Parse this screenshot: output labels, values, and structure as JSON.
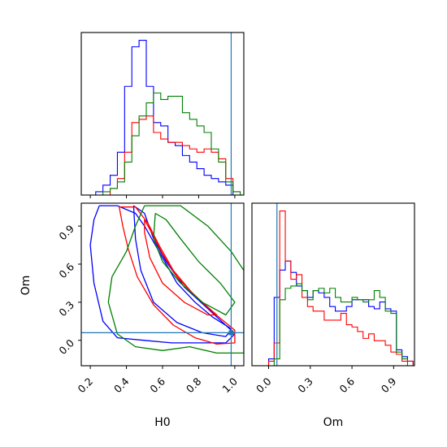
{
  "chart_data": [
    {
      "type": "histogram",
      "panel": "H0 marginal",
      "xlim": [
        0.15,
        1.05
      ],
      "xticks": [
        0.2,
        0.4,
        0.6,
        0.8,
        1.0
      ],
      "truth": 0.98,
      "bin_edges": [
        0.15,
        0.19,
        0.23,
        0.27,
        0.31,
        0.35,
        0.39,
        0.43,
        0.47,
        0.51,
        0.55,
        0.59,
        0.63,
        0.67,
        0.71,
        0.75,
        0.79,
        0.83,
        0.87,
        0.91,
        0.95,
        0.99,
        1.03
      ],
      "series": [
        {
          "color": "#0000ff",
          "counts": [
            0,
            0,
            1,
            3,
            6,
            13,
            33,
            45,
            47,
            33,
            22,
            21,
            16,
            15,
            12,
            10,
            8,
            6,
            5,
            4,
            3,
            0
          ]
        },
        {
          "color": "#ff0000",
          "counts": [
            0,
            0,
            0,
            0,
            2,
            5,
            13,
            22,
            23,
            24,
            19,
            17,
            16,
            16,
            15,
            14,
            13,
            14,
            13,
            11,
            5,
            1
          ]
        },
        {
          "color": "#008000",
          "counts": [
            0,
            0,
            0,
            1,
            2,
            4,
            10,
            18,
            24,
            28,
            31,
            29,
            30,
            30,
            25,
            23,
            21,
            19,
            14,
            10,
            4,
            1
          ]
        }
      ]
    },
    {
      "type": "contour",
      "panel": "H0 vs Om",
      "xlabel": "H0",
      "ylabel": "Om",
      "xlim": [
        0.15,
        1.05
      ],
      "ylim": [
        -0.2,
        1.08
      ],
      "xticks": [
        0.2,
        0.4,
        0.6,
        0.8,
        1.0
      ],
      "yticks": [
        0.0,
        0.3,
        0.6,
        0.9
      ],
      "xtick_labels": [
        "0.2",
        "0.4",
        "0.6",
        "0.8",
        "1.0"
      ],
      "ytick_labels": [
        "0.0",
        "0.3",
        "0.6",
        "0.9"
      ],
      "truth": {
        "x": 0.98,
        "y": 0.06
      },
      "series": [
        {
          "color": "#0000ff",
          "contours": [
            [
              [
                0.25,
                1.06
              ],
              [
                0.35,
                1.06
              ],
              [
                0.45,
                1.0
              ],
              [
                0.5,
                0.9
              ],
              [
                0.58,
                0.7
              ],
              [
                0.68,
                0.45
              ],
              [
                0.78,
                0.3
              ],
              [
                0.88,
                0.18
              ],
              [
                0.97,
                0.1
              ],
              [
                1.0,
                0.05
              ],
              [
                0.95,
                -0.02
              ],
              [
                0.8,
                -0.02
              ],
              [
                0.65,
                -0.02
              ],
              [
                0.5,
                0.0
              ],
              [
                0.35,
                0.02
              ],
              [
                0.27,
                0.15
              ],
              [
                0.22,
                0.45
              ],
              [
                0.2,
                0.75
              ],
              [
                0.22,
                0.95
              ],
              [
                0.25,
                1.06
              ]
            ],
            [
              [
                0.44,
                1.06
              ],
              [
                0.5,
                1.0
              ],
              [
                0.55,
                0.8
              ],
              [
                0.62,
                0.62
              ],
              [
                0.72,
                0.42
              ],
              [
                0.85,
                0.25
              ],
              [
                0.98,
                0.08
              ],
              [
                0.95,
                0.03
              ],
              [
                0.82,
                0.06
              ],
              [
                0.68,
                0.14
              ],
              [
                0.55,
                0.3
              ],
              [
                0.48,
                0.55
              ],
              [
                0.45,
                0.8
              ],
              [
                0.44,
                1.06
              ]
            ]
          ]
        },
        {
          "color": "#ff0000",
          "contours": [
            [
              [
                0.36,
                1.05
              ],
              [
                0.45,
                1.05
              ],
              [
                0.52,
                0.92
              ],
              [
                0.58,
                0.75
              ],
              [
                0.66,
                0.55
              ],
              [
                0.76,
                0.38
              ],
              [
                0.88,
                0.22
              ],
              [
                1.0,
                0.08
              ],
              [
                1.0,
                -0.02
              ],
              [
                0.9,
                -0.03
              ],
              [
                0.78,
                0.02
              ],
              [
                0.66,
                0.12
              ],
              [
                0.55,
                0.28
              ],
              [
                0.46,
                0.5
              ],
              [
                0.41,
                0.72
              ],
              [
                0.38,
                0.9
              ],
              [
                0.36,
                1.05
              ]
            ],
            [
              [
                0.5,
                0.95
              ],
              [
                0.55,
                0.82
              ],
              [
                0.6,
                0.68
              ],
              [
                0.68,
                0.5
              ],
              [
                0.78,
                0.35
              ],
              [
                0.9,
                0.2
              ],
              [
                0.85,
                0.2
              ],
              [
                0.72,
                0.3
              ],
              [
                0.6,
                0.45
              ],
              [
                0.53,
                0.65
              ],
              [
                0.5,
                0.85
              ],
              [
                0.5,
                0.95
              ]
            ]
          ]
        },
        {
          "color": "#008000",
          "contours": [
            [
              [
                0.5,
                1.06
              ],
              [
                0.7,
                1.06
              ],
              [
                0.85,
                0.9
              ],
              [
                0.98,
                0.7
              ],
              [
                1.05,
                0.55
              ],
              [
                1.05,
                -0.1
              ],
              [
                0.9,
                -0.1
              ],
              [
                0.75,
                -0.05
              ],
              [
                0.6,
                -0.08
              ],
              [
                0.45,
                -0.05
              ],
              [
                0.35,
                0.05
              ],
              [
                0.3,
                0.3
              ],
              [
                0.32,
                0.5
              ],
              [
                0.4,
                0.7
              ],
              [
                0.45,
                0.9
              ],
              [
                0.5,
                1.06
              ]
            ],
            [
              [
                0.56,
                1.0
              ],
              [
                0.62,
                0.95
              ],
              [
                0.7,
                0.8
              ],
              [
                0.8,
                0.62
              ],
              [
                0.92,
                0.45
              ],
              [
                1.0,
                0.3
              ],
              [
                0.95,
                0.2
              ],
              [
                0.82,
                0.3
              ],
              [
                0.7,
                0.45
              ],
              [
                0.6,
                0.62
              ],
              [
                0.55,
                0.8
              ],
              [
                0.56,
                1.0
              ]
            ]
          ]
        }
      ]
    },
    {
      "type": "histogram",
      "panel": "Om marginal",
      "xlabel": "Om",
      "xlim": [
        -0.12,
        1.05
      ],
      "xticks": [
        0.0,
        0.3,
        0.6,
        0.9
      ],
      "xtick_labels": [
        "0.0",
        "0.3",
        "0.6",
        "0.9"
      ],
      "truth": 0.06,
      "bin_edges": [
        -0.12,
        -0.08,
        -0.04,
        0.0,
        0.04,
        0.08,
        0.12,
        0.16,
        0.2,
        0.24,
        0.28,
        0.32,
        0.36,
        0.4,
        0.44,
        0.48,
        0.52,
        0.56,
        0.6,
        0.64,
        0.68,
        0.72,
        0.76,
        0.8,
        0.84,
        0.88,
        0.92,
        0.96,
        1.0,
        1.04
      ],
      "series": [
        {
          "color": "#0000ff",
          "counts": [
            0,
            0,
            0,
            3,
            30,
            42,
            46,
            41,
            35,
            33,
            30,
            33,
            32,
            30,
            26,
            24,
            24,
            26,
            29,
            29,
            29,
            26,
            25,
            28,
            25,
            24,
            7,
            4,
            2
          ]
        },
        {
          "color": "#ff0000",
          "counts": [
            0,
            0,
            0,
            2,
            10,
            68,
            46,
            38,
            40,
            30,
            26,
            24,
            24,
            20,
            20,
            20,
            23,
            18,
            17,
            15,
            12,
            14,
            11,
            11,
            9,
            6,
            5,
            2,
            2
          ]
        },
        {
          "color": "#008000",
          "counts": [
            0,
            0,
            0,
            0,
            3,
            29,
            34,
            35,
            36,
            33,
            29,
            33,
            34,
            32,
            34,
            30,
            28,
            28,
            30,
            29,
            28,
            29,
            33,
            30,
            24,
            23,
            6,
            3,
            0
          ]
        }
      ]
    }
  ]
}
